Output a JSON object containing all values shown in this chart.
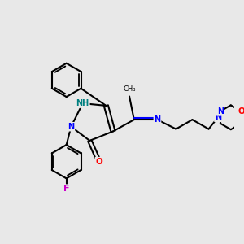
{
  "bg_color": "#e8e8e8",
  "line_color": "#000000",
  "bond_width": 1.5,
  "atom_colors": {
    "N": "#0000ff",
    "O": "#ff0000",
    "F": "#cc00cc",
    "NH": "#008080",
    "C": "#000000"
  }
}
